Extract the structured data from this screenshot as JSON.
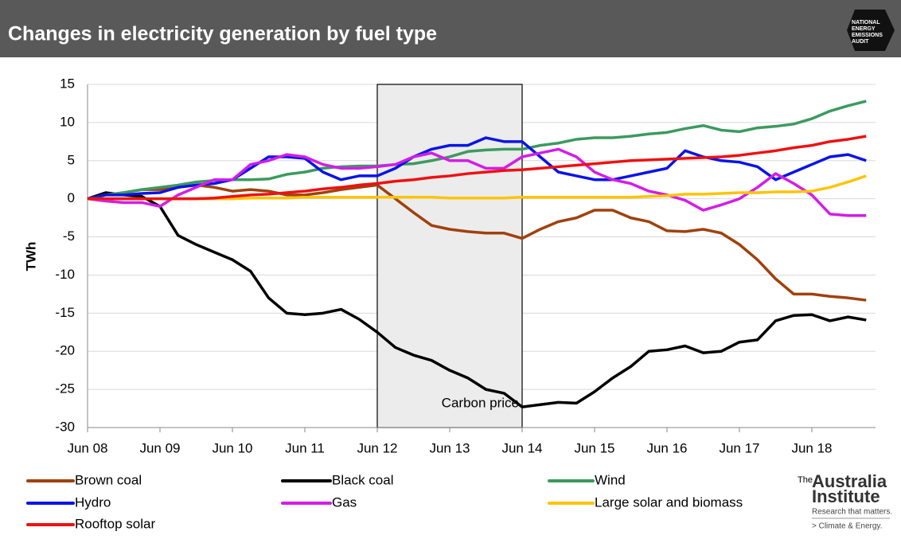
{
  "header": {
    "title": "Changes in electricity generation by fuel type",
    "logo": [
      "NATIONAL",
      "ENERGY",
      "EMISSIONS",
      "AUDIT"
    ]
  },
  "branding": {
    "name_the": "The",
    "name_1": "Australia",
    "name_2": "Institute",
    "tagline": "Research that matters.",
    "program": "> Climate & Energy."
  },
  "chart_data": {
    "type": "line",
    "y_label": "TWh",
    "annotation": "Carbon price",
    "categories": [
      "Jun 08",
      null,
      null,
      null,
      "Jun 09",
      null,
      null,
      null,
      "Jun 10",
      null,
      null,
      null,
      "Jun 11",
      null,
      null,
      null,
      "Jun 12",
      null,
      null,
      null,
      "Jun 13",
      null,
      null,
      null,
      "Jun 14",
      null,
      null,
      null,
      "Jun 15",
      null,
      null,
      null,
      "Jun 16",
      null,
      null,
      null,
      "Jun 17",
      null,
      null,
      null,
      "Jun 18",
      null,
      null,
      null
    ],
    "ylim": [
      -30,
      15
    ],
    "yticks": [
      15,
      10,
      5,
      0,
      -5,
      -10,
      -15,
      -20,
      -25,
      -30
    ],
    "grid": true,
    "series": [
      {
        "name": "Brown coal",
        "color": "#a0410d",
        "values": [
          0,
          0.5,
          0.8,
          1.2,
          1.2,
          1.5,
          1.8,
          1.5,
          1,
          1.2,
          1,
          0.5,
          0.5,
          0.8,
          1.2,
          1.5,
          1.8,
          0,
          -1.8,
          -3.5,
          -4,
          -4.3,
          -4.5,
          -4.5,
          -5.2,
          -4,
          -3,
          -2.5,
          -1.5,
          -1.5,
          -2.5,
          -3,
          -4.2,
          -4.3,
          -4,
          -4.5,
          -6,
          -8,
          -10.5,
          -12.5,
          -12.5,
          -12.8,
          -13,
          -13.3
        ]
      },
      {
        "name": "Black coal",
        "color": "#000000",
        "values": [
          0,
          0.8,
          0.5,
          0.3,
          -1,
          -4.8,
          -6,
          -7,
          -8,
          -9.5,
          -13,
          -15,
          -15.2,
          -15,
          -14.5,
          -15.8,
          -17.5,
          -19.5,
          -20.5,
          -21.2,
          -22.5,
          -23.5,
          -25,
          -25.5,
          -27.3,
          -27,
          -26.7,
          -26.8,
          -25.3,
          -23.5,
          -22,
          -20,
          -19.8,
          -19.3,
          -20.2,
          -20,
          -18.8,
          -18.5,
          -16,
          -15.3,
          -15.2,
          -16,
          -15.5,
          -15.9
        ]
      },
      {
        "name": "Wind",
        "color": "#3c9a5f",
        "values": [
          0,
          0.5,
          0.8,
          1.2,
          1.5,
          1.8,
          2.2,
          2.4,
          2.5,
          2.5,
          2.6,
          3.2,
          3.5,
          4,
          4.2,
          4.3,
          4.3,
          4.5,
          4.6,
          5,
          5.5,
          6.2,
          6.4,
          6.5,
          6.5,
          7,
          7.3,
          7.8,
          8,
          8,
          8.2,
          8.5,
          8.7,
          9.2,
          9.6,
          9,
          8.8,
          9.3,
          9.5,
          9.8,
          10.5,
          11.5,
          12.2,
          12.8
        ]
      },
      {
        "name": "Hydro",
        "color": "#0a14e6",
        "values": [
          0,
          0.5,
          0.5,
          0.7,
          0.8,
          1.5,
          1.8,
          2,
          2.5,
          4,
          5.5,
          5.5,
          5.3,
          3.5,
          2.5,
          3,
          3,
          4,
          5.5,
          6.5,
          7,
          7,
          8,
          7.5,
          7.5,
          5.5,
          3.5,
          3,
          2.5,
          2.5,
          3,
          3.5,
          4,
          6.3,
          5.5,
          5,
          4.8,
          4.2,
          2.5,
          3.5,
          4.5,
          5.5,
          5.8,
          5
        ]
      },
      {
        "name": "Gas",
        "color": "#d21ee6",
        "values": [
          0,
          -0.3,
          -0.5,
          -0.5,
          -1,
          0.5,
          1.5,
          2.5,
          2.5,
          4.5,
          5,
          5.8,
          5.5,
          4.5,
          4,
          4,
          4.2,
          4.5,
          5.5,
          6,
          5,
          5,
          4,
          4,
          5.5,
          6,
          6.5,
          5.5,
          3.5,
          2.5,
          2,
          1,
          0.5,
          -0.2,
          -1.5,
          -0.8,
          0,
          1.5,
          3.3,
          2,
          0.5,
          -2,
          -2.2,
          -2.2
        ]
      },
      {
        "name": "Large solar and biomass",
        "color": "#fcc40a",
        "values": [
          0,
          0,
          0,
          0,
          0,
          0,
          0,
          0,
          0,
          0.1,
          0.1,
          0.1,
          0.2,
          0.2,
          0.2,
          0.2,
          0.2,
          0.2,
          0.2,
          0.2,
          0.1,
          0.1,
          0.1,
          0.1,
          0.2,
          0.2,
          0.2,
          0.2,
          0.2,
          0.2,
          0.2,
          0.3,
          0.4,
          0.6,
          0.6,
          0.7,
          0.8,
          0.8,
          0.9,
          0.9,
          1,
          1.5,
          2.2,
          3
        ]
      },
      {
        "name": "Rooftop solar",
        "color": "#ee1111",
        "values": [
          0,
          0,
          0,
          0,
          0,
          0,
          0,
          0.1,
          0.3,
          0.5,
          0.6,
          0.8,
          1,
          1.3,
          1.5,
          1.8,
          2,
          2.3,
          2.5,
          2.8,
          3,
          3.3,
          3.5,
          3.7,
          3.8,
          4,
          4.2,
          4.4,
          4.6,
          4.8,
          5,
          5.1,
          5.2,
          5.3,
          5.4,
          5.5,
          5.7,
          6,
          6.3,
          6.7,
          7,
          7.5,
          7.8,
          8.2
        ]
      }
    ]
  }
}
